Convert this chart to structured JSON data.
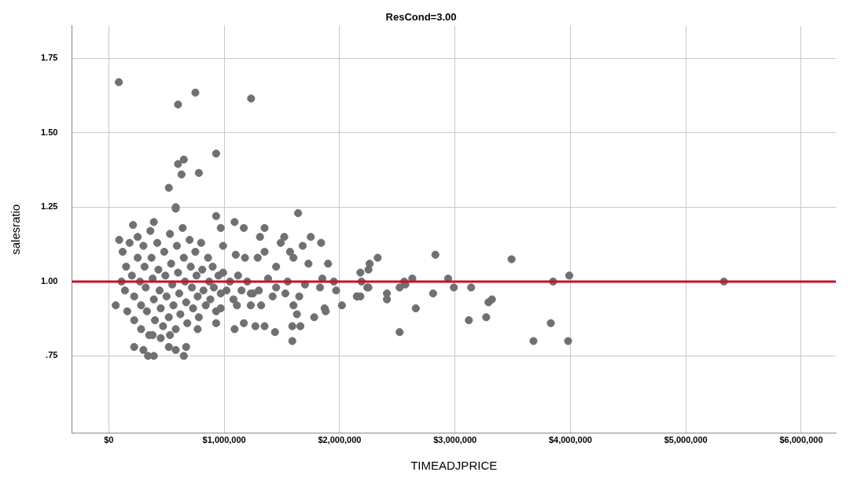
{
  "chart_data": {
    "type": "scatter",
    "title": "ResCond=3.00",
    "xlabel": "TIMEADJPRICE",
    "ylabel": "salesratio",
    "xlim": [
      -320000,
      6300000
    ],
    "ylim": [
      0.49,
      1.86
    ],
    "xticks": [
      {
        "value": 0,
        "label": "$0"
      },
      {
        "value": 1000000,
        "label": "$1,000,000"
      },
      {
        "value": 2000000,
        "label": "$2,000,000"
      },
      {
        "value": 3000000,
        "label": "$3,000,000"
      },
      {
        "value": 4000000,
        "label": "$4,000,000"
      },
      {
        "value": 5000000,
        "label": "$5,000,000"
      },
      {
        "value": 6000000,
        "label": "$6,000,000"
      }
    ],
    "yticks": [
      {
        "value": 0.75,
        "label": ".75"
      },
      {
        "value": 1,
        "label": "1.00"
      },
      {
        "value": 1.25,
        "label": "1.25"
      },
      {
        "value": 1.5,
        "label": "1.50"
      },
      {
        "value": 1.75,
        "label": "1.75"
      }
    ],
    "grid": true,
    "marker": "circle",
    "legend": false,
    "ref_lines": [
      {
        "axis": "y",
        "value": 1,
        "color": "#c8102e"
      }
    ],
    "series": [
      {
        "color": "#707070",
        "x": [
          87000,
          600000,
          750000,
          1233000,
          930000,
          600000,
          650000,
          630000,
          780000,
          520000,
          580000,
          1640000,
          930000,
          2330000,
          2830000,
          3490000,
          3990000,
          5330000,
          3850000,
          3830000,
          3680000,
          3980000,
          3270000,
          3290000,
          3320000,
          3120000,
          3140000,
          2990000,
          2940000,
          2810000,
          2660000,
          2520000,
          2630000,
          2560000,
          2520000,
          2570000,
          2410000,
          2410000,
          2240000,
          2190000,
          2180000,
          2250000,
          2260000,
          2150000,
          2180000,
          1090000,
          1170000,
          1350000,
          1310000,
          1490000,
          1520000,
          1750000,
          1840000,
          1680000,
          1570000,
          1600000,
          1900000,
          1730000,
          1450000,
          1350000,
          1290000,
          1180000,
          1100000,
          990000,
          970000,
          1830000,
          1970000,
          1950000,
          1850000,
          1650000,
          1600000,
          1630000,
          1590000,
          1660000,
          1590000,
          1780000,
          1870000,
          1880000,
          2020000,
          2150000,
          2250000,
          1440000,
          1270000,
          1350000,
          1170000,
          1090000,
          1320000,
          1230000,
          1110000,
          1230000,
          1450000,
          1530000,
          1300000,
          970000,
          770000,
          930000,
          220000,
          300000,
          340000,
          390000,
          650000,
          670000,
          520000,
          580000,
          380000,
          450000,
          530000,
          60000,
          110000,
          90000,
          210000,
          390000,
          580000,
          120000,
          150000,
          140000,
          160000,
          180000,
          200000,
          220000,
          220000,
          250000,
          250000,
          270000,
          280000,
          280000,
          300000,
          310000,
          320000,
          330000,
          350000,
          360000,
          370000,
          380000,
          390000,
          400000,
          420000,
          430000,
          440000,
          450000,
          470000,
          480000,
          490000,
          500000,
          520000,
          530000,
          540000,
          550000,
          560000,
          580000,
          590000,
          600000,
          610000,
          620000,
          640000,
          650000,
          660000,
          670000,
          680000,
          700000,
          710000,
          720000,
          730000,
          750000,
          760000,
          770000,
          780000,
          800000,
          810000,
          820000,
          840000,
          860000,
          870000,
          880000,
          900000,
          910000,
          930000,
          950000,
          970000,
          990000,
          1020000,
          1050000,
          1080000,
          1120000,
          1150000,
          1200000,
          1250000,
          1380000,
          1420000,
          1550000,
          1700000
        ],
        "values": [
          1.67,
          1.595,
          1.635,
          1.615,
          1.43,
          1.395,
          1.41,
          1.36,
          1.365,
          1.315,
          1.245,
          1.23,
          1.22,
          1.08,
          1.09,
          1.075,
          1.02,
          1.0,
          1.0,
          0.86,
          0.8,
          0.8,
          0.88,
          0.93,
          0.94,
          0.87,
          0.98,
          0.98,
          1.01,
          0.96,
          0.91,
          0.83,
          1.01,
          1.0,
          0.98,
          0.99,
          0.96,
          0.94,
          0.98,
          1.0,
          1.03,
          1.04,
          1.06,
          0.95,
          0.95,
          1.2,
          1.18,
          1.18,
          1.15,
          1.13,
          1.15,
          1.15,
          1.13,
          1.12,
          1.1,
          1.08,
          1.06,
          1.06,
          1.05,
          1.1,
          1.08,
          1.08,
          1.09,
          1.12,
          1.18,
          0.98,
          0.97,
          1.0,
          1.01,
          0.95,
          0.92,
          0.89,
          0.85,
          0.85,
          0.8,
          0.88,
          0.91,
          0.9,
          0.92,
          0.95,
          0.98,
          0.83,
          0.85,
          0.85,
          0.86,
          0.84,
          0.92,
          0.92,
          0.92,
          0.96,
          0.98,
          0.96,
          0.97,
          0.91,
          0.84,
          0.86,
          0.78,
          0.77,
          0.75,
          0.75,
          0.75,
          0.78,
          0.78,
          0.77,
          0.82,
          0.81,
          0.82,
          0.92,
          1.0,
          1.14,
          1.19,
          1.2,
          1.25,
          1.1,
          1.05,
          0.97,
          0.9,
          1.13,
          1.02,
          0.95,
          0.87,
          1.15,
          1.08,
          1.0,
          0.92,
          0.84,
          1.12,
          1.05,
          0.98,
          0.9,
          0.82,
          1.17,
          1.08,
          1.01,
          0.94,
          0.87,
          1.13,
          1.04,
          0.97,
          0.91,
          0.85,
          1.1,
          1.02,
          0.95,
          0.88,
          1.16,
          1.06,
          0.99,
          0.92,
          0.84,
          1.12,
          1.03,
          0.96,
          0.89,
          1.18,
          1.08,
          1.0,
          0.93,
          0.86,
          1.14,
          1.05,
          0.98,
          0.91,
          1.1,
          1.02,
          0.95,
          0.88,
          1.13,
          1.04,
          0.97,
          0.92,
          1.08,
          1.0,
          0.94,
          1.05,
          0.98,
          0.9,
          1.02,
          0.96,
          1.03,
          0.97,
          1.0,
          0.94,
          1.02,
          0.97,
          1.0,
          0.96,
          1.01,
          0.95,
          1.0,
          0.99
        ]
      }
    ]
  }
}
